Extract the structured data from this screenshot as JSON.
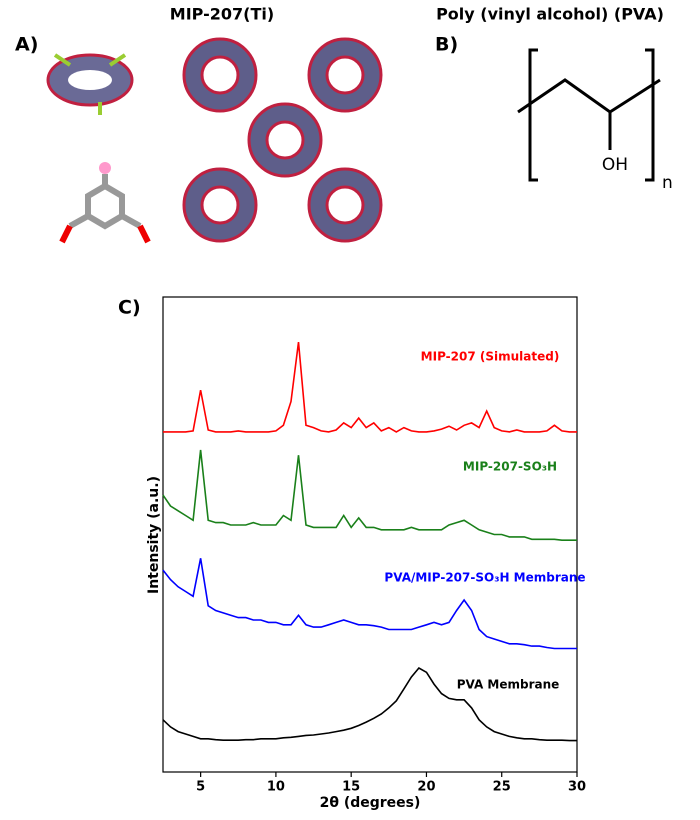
{
  "panel_a": {
    "label": "A)",
    "title": "MIP-207(Ti)"
  },
  "panel_b": {
    "label": "B)",
    "title": "Poly (vinyl alcohol) (PVA)",
    "substituent": "OH",
    "repeat_index": "n"
  },
  "panel_c": {
    "label": "C)"
  },
  "chart_data": {
    "type": "line",
    "xlabel": "2θ (degrees)",
    "ylabel": "Intensity (a.u.)",
    "xlim": [
      2.5,
      30
    ],
    "xticks": [
      5,
      10,
      15,
      20,
      25,
      30
    ],
    "ylim": [
      0,
      100
    ],
    "x": [
      2.5,
      3,
      3.5,
      4,
      4.5,
      5,
      5.5,
      6,
      6.5,
      7,
      7.5,
      8,
      8.5,
      9,
      9.5,
      10,
      10.5,
      11,
      11.5,
      12,
      12.5,
      13,
      13.5,
      14,
      14.5,
      15,
      15.5,
      16,
      16.5,
      17,
      17.5,
      18,
      18.5,
      19,
      19.5,
      20,
      20.5,
      21,
      21.5,
      22,
      22.5,
      23,
      23.5,
      24,
      24.5,
      25,
      25.5,
      26,
      26.5,
      27,
      27.5,
      28,
      28.5,
      29,
      29.5,
      30
    ],
    "series": [
      {
        "name": "MIP-207 (Simulated)",
        "color": "#ff0000",
        "values": [
          71.6,
          71.6,
          71.6,
          71.6,
          71.8,
          80.4,
          72,
          71.6,
          71.6,
          71.6,
          71.8,
          71.6,
          71.6,
          71.6,
          71.6,
          71.8,
          73,
          78,
          90.5,
          73,
          72.5,
          71.8,
          71.6,
          72,
          73.5,
          72.5,
          74.5,
          72.5,
          73.5,
          71.8,
          72.5,
          71.6,
          72.5,
          71.8,
          71.6,
          71.6,
          71.8,
          72.2,
          72.8,
          72,
          73,
          73.5,
          72.5,
          76,
          72.5,
          71.8,
          71.6,
          72,
          71.6,
          71.6,
          71.6,
          71.8,
          73,
          71.8,
          71.6,
          71.6
        ]
      },
      {
        "name": "MIP-207-SO₃H",
        "color": "#1a801a",
        "values": [
          58.3,
          56,
          55,
          54,
          53,
          67.8,
          53,
          52.5,
          52.5,
          52,
          52,
          52,
          52.5,
          52,
          52,
          52,
          54,
          53,
          66.7,
          52,
          51.5,
          51.5,
          51.5,
          51.5,
          54,
          51.5,
          53.5,
          51.5,
          51.5,
          51,
          51,
          51,
          51,
          51.5,
          51,
          51,
          51,
          51,
          52,
          52.5,
          53,
          52,
          51,
          50.5,
          50,
          50,
          49.5,
          49.5,
          49.5,
          49,
          49,
          49,
          49,
          48.8,
          48.8,
          48.8
        ]
      },
      {
        "name": "PVA/MIP-207-SO₃H Membrane",
        "color": "#0000ff",
        "values": [
          42.5,
          40.5,
          39,
          38,
          37,
          45,
          35,
          34,
          33.5,
          33,
          32.5,
          32.5,
          32,
          32,
          31.5,
          31.5,
          31,
          31,
          33,
          31,
          30.5,
          30.5,
          31,
          31.5,
          32,
          31.5,
          31,
          31,
          30.8,
          30.5,
          30,
          30,
          30,
          30,
          30.5,
          31,
          31.5,
          31,
          31.5,
          34,
          36.2,
          34,
          30,
          28.5,
          28,
          27.5,
          27,
          27,
          26.8,
          26.5,
          26.5,
          26.2,
          26,
          26,
          26,
          26
        ]
      },
      {
        "name": "PVA Membrane",
        "color": "#000000",
        "values": [
          11,
          9.5,
          8.5,
          8,
          7.5,
          7,
          7,
          6.8,
          6.7,
          6.7,
          6.7,
          6.8,
          6.8,
          7,
          7,
          7,
          7.2,
          7.3,
          7.5,
          7.7,
          7.8,
          8,
          8.2,
          8.5,
          8.8,
          9.2,
          9.8,
          10.5,
          11.3,
          12.2,
          13.5,
          15,
          17.5,
          20,
          21.9,
          21,
          18.5,
          16.5,
          15.5,
          15.2,
          15.2,
          13.5,
          11,
          9.5,
          8.5,
          8,
          7.5,
          7.2,
          7,
          7,
          6.8,
          6.7,
          6.7,
          6.7,
          6.6,
          6.6
        ]
      }
    ]
  }
}
